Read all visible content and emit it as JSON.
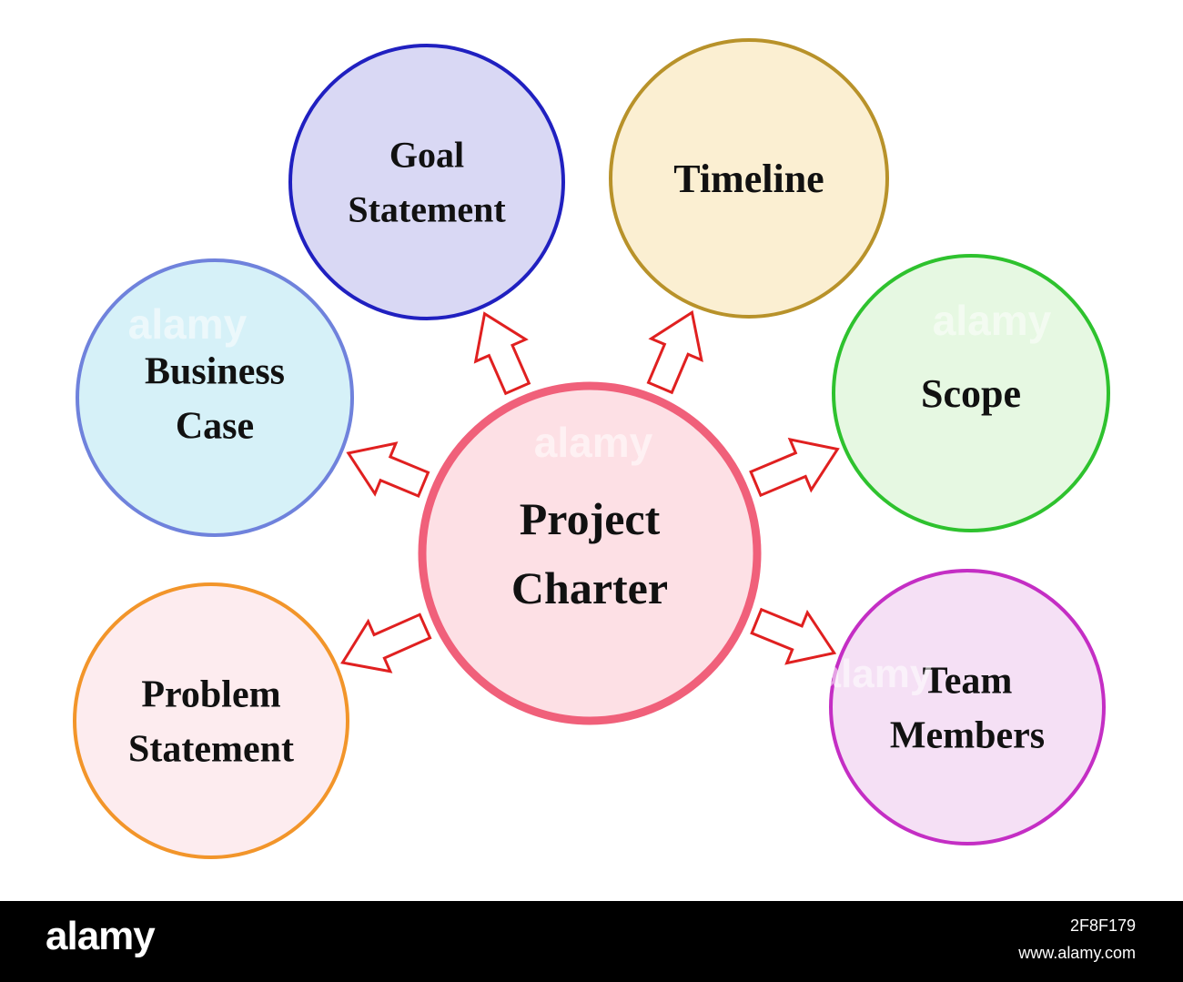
{
  "center": {
    "lines": [
      "Project",
      "Charter"
    ],
    "fill": "#fde0e5",
    "stroke": "#f0607a"
  },
  "nodes": [
    {
      "id": "goal-statement",
      "lines": [
        "Goal",
        "Statement"
      ],
      "fill": "#d9d8f4",
      "stroke": "#2020c0"
    },
    {
      "id": "timeline",
      "lines": [
        "Timeline"
      ],
      "fill": "#fbefd2",
      "stroke": "#b8922a"
    },
    {
      "id": "business-case",
      "lines": [
        "Business",
        "Case"
      ],
      "fill": "#d6f1f8",
      "stroke": "#6f82dc"
    },
    {
      "id": "scope",
      "lines": [
        "Scope"
      ],
      "fill": "#e6f8e2",
      "stroke": "#2ec22e"
    },
    {
      "id": "problem-statement",
      "lines": [
        "Problem",
        "Statement"
      ],
      "fill": "#fdecef",
      "stroke": "#f2952a"
    },
    {
      "id": "team-members",
      "lines": [
        "Team",
        "Members"
      ],
      "fill": "#f5e0f5",
      "stroke": "#c42ec4"
    }
  ],
  "arrow_color": "#e02020",
  "watermark": "alamy",
  "footer": {
    "logo": "alamy",
    "image_id": "2F8F179",
    "site": "www.alamy.com"
  }
}
